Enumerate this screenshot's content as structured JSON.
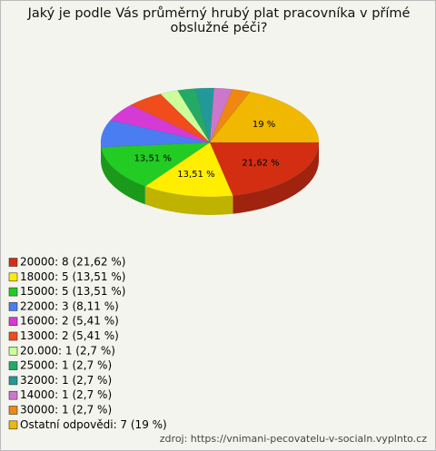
{
  "chart_data": {
    "type": "pie",
    "title": "Jaký je podle Vás průměrný hrubý plat pracovníka v přímé obslužné péči?",
    "categories": [
      "20000: 8 (21,62 %)",
      "18000: 5 (13,51 %)",
      "15000: 5 (13,51 %)",
      "22000: 3 (8,11 %)",
      "16000: 2 (5,41 %)",
      "13000: 2 (5,41 %)",
      "20.000: 1 (2,7 %)",
      "25000: 1 (2,7 %)",
      "32000: 1 (2,7 %)",
      "14000: 1 (2,7 %)",
      "30000: 1 (2,7 %)",
      "Ostatní odpovědi: 7 (19 %)"
    ],
    "values": [
      21.62,
      13.51,
      13.51,
      8.11,
      5.41,
      5.41,
      2.7,
      2.7,
      2.7,
      2.7,
      2.7,
      19
    ],
    "value_labels": [
      "21,62 %",
      "13,51 %",
      "13,51 %",
      null,
      null,
      null,
      null,
      null,
      null,
      null,
      null,
      "19 %"
    ],
    "colors": [
      "#d42e12",
      "#ffee00",
      "#22cc22",
      "#4a7cf2",
      "#d63ad6",
      "#f04c1c",
      "#ccff99",
      "#22aa66",
      "#229999",
      "#cc77cc",
      "#ee8811",
      "#f0b800"
    ],
    "source": "zdroj: https://vnimani-pecovatelu-v-socialn.vyplnto.cz"
  }
}
